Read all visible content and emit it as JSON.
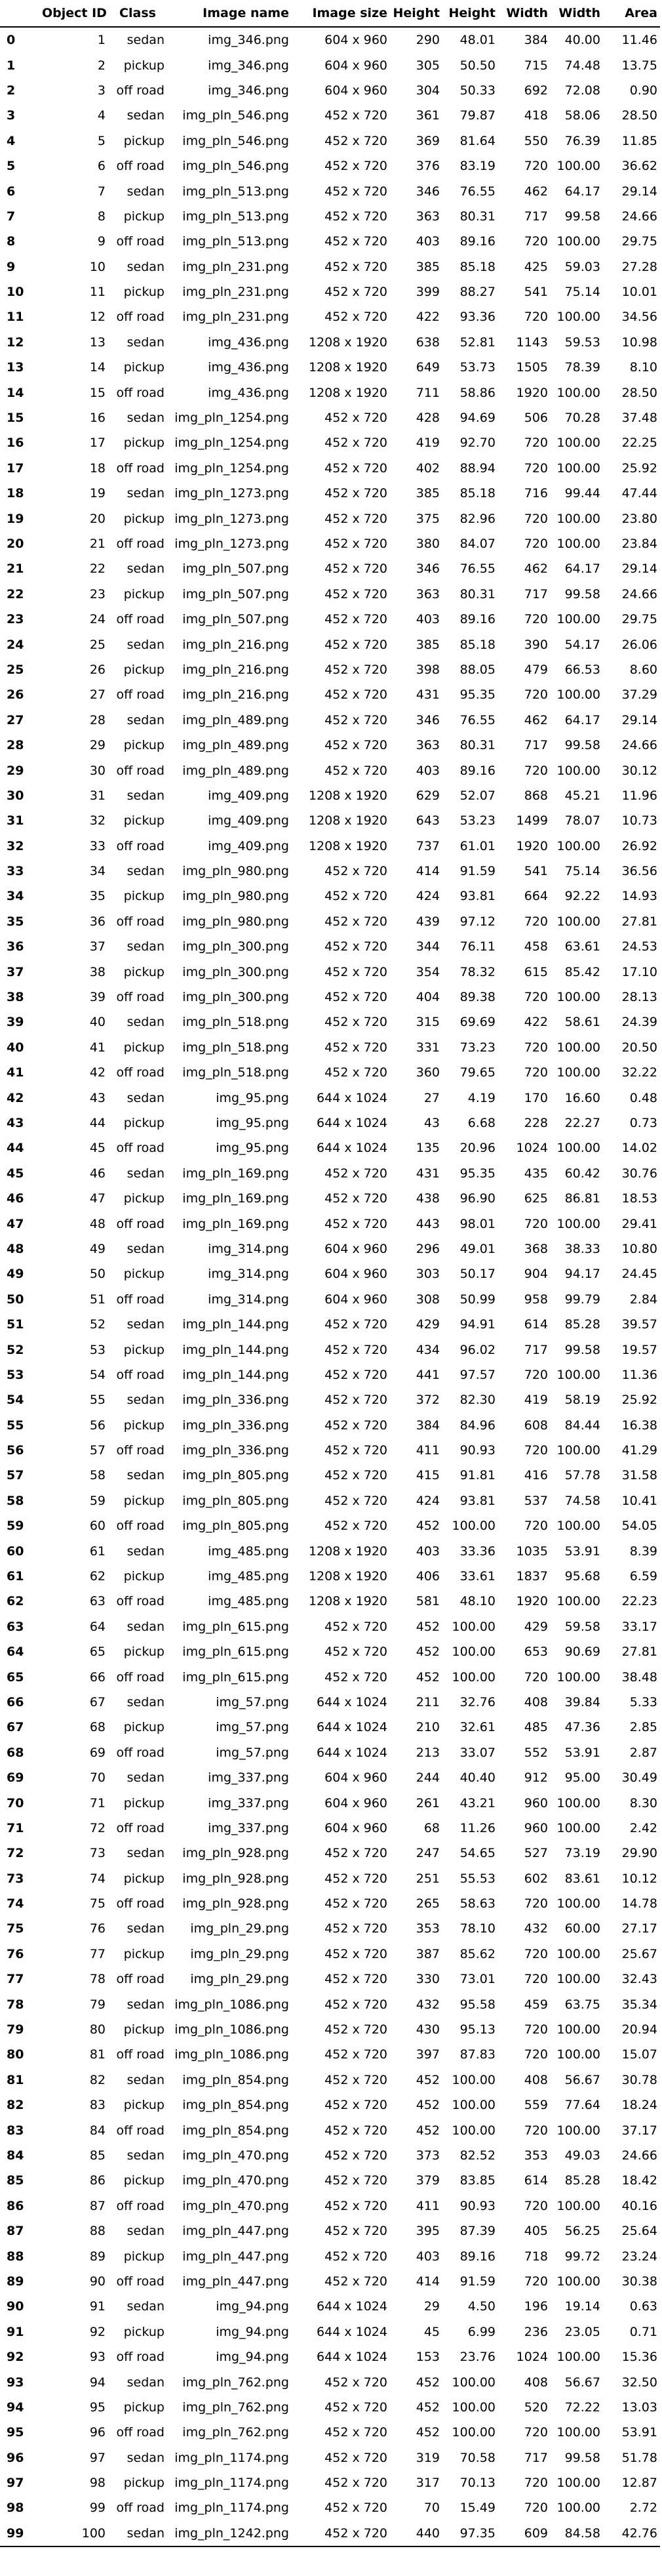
{
  "table": {
    "columns": [
      "",
      "Object ID",
      "Class",
      "Image name",
      "Image size",
      "Height",
      "Height",
      "Width",
      "Width",
      "Area"
    ],
    "rows": [
      [
        "0",
        "1",
        "sedan",
        "img_346.png",
        "604 x 960",
        "290",
        "48.01",
        "384",
        "40.00",
        "11.46"
      ],
      [
        "1",
        "2",
        "pickup",
        "img_346.png",
        "604 x 960",
        "305",
        "50.50",
        "715",
        "74.48",
        "13.75"
      ],
      [
        "2",
        "3",
        "off road",
        "img_346.png",
        "604 x 960",
        "304",
        "50.33",
        "692",
        "72.08",
        "0.90"
      ],
      [
        "3",
        "4",
        "sedan",
        "img_pln_546.png",
        "452 x 720",
        "361",
        "79.87",
        "418",
        "58.06",
        "28.50"
      ],
      [
        "4",
        "5",
        "pickup",
        "img_pln_546.png",
        "452 x 720",
        "369",
        "81.64",
        "550",
        "76.39",
        "11.85"
      ],
      [
        "5",
        "6",
        "off road",
        "img_pln_546.png",
        "452 x 720",
        "376",
        "83.19",
        "720",
        "100.00",
        "36.62"
      ],
      [
        "6",
        "7",
        "sedan",
        "img_pln_513.png",
        "452 x 720",
        "346",
        "76.55",
        "462",
        "64.17",
        "29.14"
      ],
      [
        "7",
        "8",
        "pickup",
        "img_pln_513.png",
        "452 x 720",
        "363",
        "80.31",
        "717",
        "99.58",
        "24.66"
      ],
      [
        "8",
        "9",
        "off road",
        "img_pln_513.png",
        "452 x 720",
        "403",
        "89.16",
        "720",
        "100.00",
        "29.75"
      ],
      [
        "9",
        "10",
        "sedan",
        "img_pln_231.png",
        "452 x 720",
        "385",
        "85.18",
        "425",
        "59.03",
        "27.28"
      ],
      [
        "10",
        "11",
        "pickup",
        "img_pln_231.png",
        "452 x 720",
        "399",
        "88.27",
        "541",
        "75.14",
        "10.01"
      ],
      [
        "11",
        "12",
        "off road",
        "img_pln_231.png",
        "452 x 720",
        "422",
        "93.36",
        "720",
        "100.00",
        "34.56"
      ],
      [
        "12",
        "13",
        "sedan",
        "img_436.png",
        "1208 x 1920",
        "638",
        "52.81",
        "1143",
        "59.53",
        "10.98"
      ],
      [
        "13",
        "14",
        "pickup",
        "img_436.png",
        "1208 x 1920",
        "649",
        "53.73",
        "1505",
        "78.39",
        "8.10"
      ],
      [
        "14",
        "15",
        "off road",
        "img_436.png",
        "1208 x 1920",
        "711",
        "58.86",
        "1920",
        "100.00",
        "28.50"
      ],
      [
        "15",
        "16",
        "sedan",
        "img_pln_1254.png",
        "452 x 720",
        "428",
        "94.69",
        "506",
        "70.28",
        "37.48"
      ],
      [
        "16",
        "17",
        "pickup",
        "img_pln_1254.png",
        "452 x 720",
        "419",
        "92.70",
        "720",
        "100.00",
        "22.25"
      ],
      [
        "17",
        "18",
        "off road",
        "img_pln_1254.png",
        "452 x 720",
        "402",
        "88.94",
        "720",
        "100.00",
        "25.92"
      ],
      [
        "18",
        "19",
        "sedan",
        "img_pln_1273.png",
        "452 x 720",
        "385",
        "85.18",
        "716",
        "99.44",
        "47.44"
      ],
      [
        "19",
        "20",
        "pickup",
        "img_pln_1273.png",
        "452 x 720",
        "375",
        "82.96",
        "720",
        "100.00",
        "23.80"
      ],
      [
        "20",
        "21",
        "off road",
        "img_pln_1273.png",
        "452 x 720",
        "380",
        "84.07",
        "720",
        "100.00",
        "23.84"
      ],
      [
        "21",
        "22",
        "sedan",
        "img_pln_507.png",
        "452 x 720",
        "346",
        "76.55",
        "462",
        "64.17",
        "29.14"
      ],
      [
        "22",
        "23",
        "pickup",
        "img_pln_507.png",
        "452 x 720",
        "363",
        "80.31",
        "717",
        "99.58",
        "24.66"
      ],
      [
        "23",
        "24",
        "off road",
        "img_pln_507.png",
        "452 x 720",
        "403",
        "89.16",
        "720",
        "100.00",
        "29.75"
      ],
      [
        "24",
        "25",
        "sedan",
        "img_pln_216.png",
        "452 x 720",
        "385",
        "85.18",
        "390",
        "54.17",
        "26.06"
      ],
      [
        "25",
        "26",
        "pickup",
        "img_pln_216.png",
        "452 x 720",
        "398",
        "88.05",
        "479",
        "66.53",
        "8.60"
      ],
      [
        "26",
        "27",
        "off road",
        "img_pln_216.png",
        "452 x 720",
        "431",
        "95.35",
        "720",
        "100.00",
        "37.29"
      ],
      [
        "27",
        "28",
        "sedan",
        "img_pln_489.png",
        "452 x 720",
        "346",
        "76.55",
        "462",
        "64.17",
        "29.14"
      ],
      [
        "28",
        "29",
        "pickup",
        "img_pln_489.png",
        "452 x 720",
        "363",
        "80.31",
        "717",
        "99.58",
        "24.66"
      ],
      [
        "29",
        "30",
        "off road",
        "img_pln_489.png",
        "452 x 720",
        "403",
        "89.16",
        "720",
        "100.00",
        "30.12"
      ],
      [
        "30",
        "31",
        "sedan",
        "img_409.png",
        "1208 x 1920",
        "629",
        "52.07",
        "868",
        "45.21",
        "11.96"
      ],
      [
        "31",
        "32",
        "pickup",
        "img_409.png",
        "1208 x 1920",
        "643",
        "53.23",
        "1499",
        "78.07",
        "10.73"
      ],
      [
        "32",
        "33",
        "off road",
        "img_409.png",
        "1208 x 1920",
        "737",
        "61.01",
        "1920",
        "100.00",
        "26.92"
      ],
      [
        "33",
        "34",
        "sedan",
        "img_pln_980.png",
        "452 x 720",
        "414",
        "91.59",
        "541",
        "75.14",
        "36.56"
      ],
      [
        "34",
        "35",
        "pickup",
        "img_pln_980.png",
        "452 x 720",
        "424",
        "93.81",
        "664",
        "92.22",
        "14.93"
      ],
      [
        "35",
        "36",
        "off road",
        "img_pln_980.png",
        "452 x 720",
        "439",
        "97.12",
        "720",
        "100.00",
        "27.81"
      ],
      [
        "36",
        "37",
        "sedan",
        "img_pln_300.png",
        "452 x 720",
        "344",
        "76.11",
        "458",
        "63.61",
        "24.53"
      ],
      [
        "37",
        "38",
        "pickup",
        "img_pln_300.png",
        "452 x 720",
        "354",
        "78.32",
        "615",
        "85.42",
        "17.10"
      ],
      [
        "38",
        "39",
        "off road",
        "img_pln_300.png",
        "452 x 720",
        "404",
        "89.38",
        "720",
        "100.00",
        "28.13"
      ],
      [
        "39",
        "40",
        "sedan",
        "img_pln_518.png",
        "452 x 720",
        "315",
        "69.69",
        "422",
        "58.61",
        "24.39"
      ],
      [
        "40",
        "41",
        "pickup",
        "img_pln_518.png",
        "452 x 720",
        "331",
        "73.23",
        "720",
        "100.00",
        "20.50"
      ],
      [
        "41",
        "42",
        "off road",
        "img_pln_518.png",
        "452 x 720",
        "360",
        "79.65",
        "720",
        "100.00",
        "32.22"
      ],
      [
        "42",
        "43",
        "sedan",
        "img_95.png",
        "644 x 1024",
        "27",
        "4.19",
        "170",
        "16.60",
        "0.48"
      ],
      [
        "43",
        "44",
        "pickup",
        "img_95.png",
        "644 x 1024",
        "43",
        "6.68",
        "228",
        "22.27",
        "0.73"
      ],
      [
        "44",
        "45",
        "off road",
        "img_95.png",
        "644 x 1024",
        "135",
        "20.96",
        "1024",
        "100.00",
        "14.02"
      ],
      [
        "45",
        "46",
        "sedan",
        "img_pln_169.png",
        "452 x 720",
        "431",
        "95.35",
        "435",
        "60.42",
        "30.76"
      ],
      [
        "46",
        "47",
        "pickup",
        "img_pln_169.png",
        "452 x 720",
        "438",
        "96.90",
        "625",
        "86.81",
        "18.53"
      ],
      [
        "47",
        "48",
        "off road",
        "img_pln_169.png",
        "452 x 720",
        "443",
        "98.01",
        "720",
        "100.00",
        "29.41"
      ],
      [
        "48",
        "49",
        "sedan",
        "img_314.png",
        "604 x 960",
        "296",
        "49.01",
        "368",
        "38.33",
        "10.80"
      ],
      [
        "49",
        "50",
        "pickup",
        "img_314.png",
        "604 x 960",
        "303",
        "50.17",
        "904",
        "94.17",
        "24.45"
      ],
      [
        "50",
        "51",
        "off road",
        "img_314.png",
        "604 x 960",
        "308",
        "50.99",
        "958",
        "99.79",
        "2.84"
      ],
      [
        "51",
        "52",
        "sedan",
        "img_pln_144.png",
        "452 x 720",
        "429",
        "94.91",
        "614",
        "85.28",
        "39.57"
      ],
      [
        "52",
        "53",
        "pickup",
        "img_pln_144.png",
        "452 x 720",
        "434",
        "96.02",
        "717",
        "99.58",
        "19.57"
      ],
      [
        "53",
        "54",
        "off road",
        "img_pln_144.png",
        "452 x 720",
        "441",
        "97.57",
        "720",
        "100.00",
        "11.36"
      ],
      [
        "54",
        "55",
        "sedan",
        "img_pln_336.png",
        "452 x 720",
        "372",
        "82.30",
        "419",
        "58.19",
        "25.92"
      ],
      [
        "55",
        "56",
        "pickup",
        "img_pln_336.png",
        "452 x 720",
        "384",
        "84.96",
        "608",
        "84.44",
        "16.38"
      ],
      [
        "56",
        "57",
        "off road",
        "img_pln_336.png",
        "452 x 720",
        "411",
        "90.93",
        "720",
        "100.00",
        "41.29"
      ],
      [
        "57",
        "58",
        "sedan",
        "img_pln_805.png",
        "452 x 720",
        "415",
        "91.81",
        "416",
        "57.78",
        "31.58"
      ],
      [
        "58",
        "59",
        "pickup",
        "img_pln_805.png",
        "452 x 720",
        "424",
        "93.81",
        "537",
        "74.58",
        "10.41"
      ],
      [
        "59",
        "60",
        "off road",
        "img_pln_805.png",
        "452 x 720",
        "452",
        "100.00",
        "720",
        "100.00",
        "54.05"
      ],
      [
        "60",
        "61",
        "sedan",
        "img_485.png",
        "1208 x 1920",
        "403",
        "33.36",
        "1035",
        "53.91",
        "8.39"
      ],
      [
        "61",
        "62",
        "pickup",
        "img_485.png",
        "1208 x 1920",
        "406",
        "33.61",
        "1837",
        "95.68",
        "6.59"
      ],
      [
        "62",
        "63",
        "off road",
        "img_485.png",
        "1208 x 1920",
        "581",
        "48.10",
        "1920",
        "100.00",
        "22.23"
      ],
      [
        "63",
        "64",
        "sedan",
        "img_pln_615.png",
        "452 x 720",
        "452",
        "100.00",
        "429",
        "59.58",
        "33.17"
      ],
      [
        "64",
        "65",
        "pickup",
        "img_pln_615.png",
        "452 x 720",
        "452",
        "100.00",
        "653",
        "90.69",
        "27.81"
      ],
      [
        "65",
        "66",
        "off road",
        "img_pln_615.png",
        "452 x 720",
        "452",
        "100.00",
        "720",
        "100.00",
        "38.48"
      ],
      [
        "66",
        "67",
        "sedan",
        "img_57.png",
        "644 x 1024",
        "211",
        "32.76",
        "408",
        "39.84",
        "5.33"
      ],
      [
        "67",
        "68",
        "pickup",
        "img_57.png",
        "644 x 1024",
        "210",
        "32.61",
        "485",
        "47.36",
        "2.85"
      ],
      [
        "68",
        "69",
        "off road",
        "img_57.png",
        "644 x 1024",
        "213",
        "33.07",
        "552",
        "53.91",
        "2.87"
      ],
      [
        "69",
        "70",
        "sedan",
        "img_337.png",
        "604 x 960",
        "244",
        "40.40",
        "912",
        "95.00",
        "30.49"
      ],
      [
        "70",
        "71",
        "pickup",
        "img_337.png",
        "604 x 960",
        "261",
        "43.21",
        "960",
        "100.00",
        "8.30"
      ],
      [
        "71",
        "72",
        "off road",
        "img_337.png",
        "604 x 960",
        "68",
        "11.26",
        "960",
        "100.00",
        "2.42"
      ],
      [
        "72",
        "73",
        "sedan",
        "img_pln_928.png",
        "452 x 720",
        "247",
        "54.65",
        "527",
        "73.19",
        "29.90"
      ],
      [
        "73",
        "74",
        "pickup",
        "img_pln_928.png",
        "452 x 720",
        "251",
        "55.53",
        "602",
        "83.61",
        "10.12"
      ],
      [
        "74",
        "75",
        "off road",
        "img_pln_928.png",
        "452 x 720",
        "265",
        "58.63",
        "720",
        "100.00",
        "14.78"
      ],
      [
        "75",
        "76",
        "sedan",
        "img_pln_29.png",
        "452 x 720",
        "353",
        "78.10",
        "432",
        "60.00",
        "27.17"
      ],
      [
        "76",
        "77",
        "pickup",
        "img_pln_29.png",
        "452 x 720",
        "387",
        "85.62",
        "720",
        "100.00",
        "25.67"
      ],
      [
        "77",
        "78",
        "off road",
        "img_pln_29.png",
        "452 x 720",
        "330",
        "73.01",
        "720",
        "100.00",
        "32.43"
      ],
      [
        "78",
        "79",
        "sedan",
        "img_pln_1086.png",
        "452 x 720",
        "432",
        "95.58",
        "459",
        "63.75",
        "35.34"
      ],
      [
        "79",
        "80",
        "pickup",
        "img_pln_1086.png",
        "452 x 720",
        "430",
        "95.13",
        "720",
        "100.00",
        "20.94"
      ],
      [
        "80",
        "81",
        "off road",
        "img_pln_1086.png",
        "452 x 720",
        "397",
        "87.83",
        "720",
        "100.00",
        "15.07"
      ],
      [
        "81",
        "82",
        "sedan",
        "img_pln_854.png",
        "452 x 720",
        "452",
        "100.00",
        "408",
        "56.67",
        "30.78"
      ],
      [
        "82",
        "83",
        "pickup",
        "img_pln_854.png",
        "452 x 720",
        "452",
        "100.00",
        "559",
        "77.64",
        "18.24"
      ],
      [
        "83",
        "84",
        "off road",
        "img_pln_854.png",
        "452 x 720",
        "452",
        "100.00",
        "720",
        "100.00",
        "37.17"
      ],
      [
        "84",
        "85",
        "sedan",
        "img_pln_470.png",
        "452 x 720",
        "373",
        "82.52",
        "353",
        "49.03",
        "24.66"
      ],
      [
        "85",
        "86",
        "pickup",
        "img_pln_470.png",
        "452 x 720",
        "379",
        "83.85",
        "614",
        "85.28",
        "18.42"
      ],
      [
        "86",
        "87",
        "off road",
        "img_pln_470.png",
        "452 x 720",
        "411",
        "90.93",
        "720",
        "100.00",
        "40.16"
      ],
      [
        "87",
        "88",
        "sedan",
        "img_pln_447.png",
        "452 x 720",
        "395",
        "87.39",
        "405",
        "56.25",
        "25.64"
      ],
      [
        "88",
        "89",
        "pickup",
        "img_pln_447.png",
        "452 x 720",
        "403",
        "89.16",
        "718",
        "99.72",
        "23.24"
      ],
      [
        "89",
        "90",
        "off road",
        "img_pln_447.png",
        "452 x 720",
        "414",
        "91.59",
        "720",
        "100.00",
        "30.38"
      ],
      [
        "90",
        "91",
        "sedan",
        "img_94.png",
        "644 x 1024",
        "29",
        "4.50",
        "196",
        "19.14",
        "0.63"
      ],
      [
        "91",
        "92",
        "pickup",
        "img_94.png",
        "644 x 1024",
        "45",
        "6.99",
        "236",
        "23.05",
        "0.71"
      ],
      [
        "92",
        "93",
        "off road",
        "img_94.png",
        "644 x 1024",
        "153",
        "23.76",
        "1024",
        "100.00",
        "15.36"
      ],
      [
        "93",
        "94",
        "sedan",
        "img_pln_762.png",
        "452 x 720",
        "452",
        "100.00",
        "408",
        "56.67",
        "32.50"
      ],
      [
        "94",
        "95",
        "pickup",
        "img_pln_762.png",
        "452 x 720",
        "452",
        "100.00",
        "520",
        "72.22",
        "13.03"
      ],
      [
        "95",
        "96",
        "off road",
        "img_pln_762.png",
        "452 x 720",
        "452",
        "100.00",
        "720",
        "100.00",
        "53.91"
      ],
      [
        "96",
        "97",
        "sedan",
        "img_pln_1174.png",
        "452 x 720",
        "319",
        "70.58",
        "717",
        "99.58",
        "51.78"
      ],
      [
        "97",
        "98",
        "pickup",
        "img_pln_1174.png",
        "452 x 720",
        "317",
        "70.13",
        "720",
        "100.00",
        "12.87"
      ],
      [
        "98",
        "99",
        "off road",
        "img_pln_1174.png",
        "452 x 720",
        "70",
        "15.49",
        "720",
        "100.00",
        "2.72"
      ],
      [
        "99",
        "100",
        "sedan",
        "img_pln_1242.png",
        "452 x 720",
        "440",
        "97.35",
        "609",
        "84.58",
        "42.76"
      ]
    ]
  }
}
